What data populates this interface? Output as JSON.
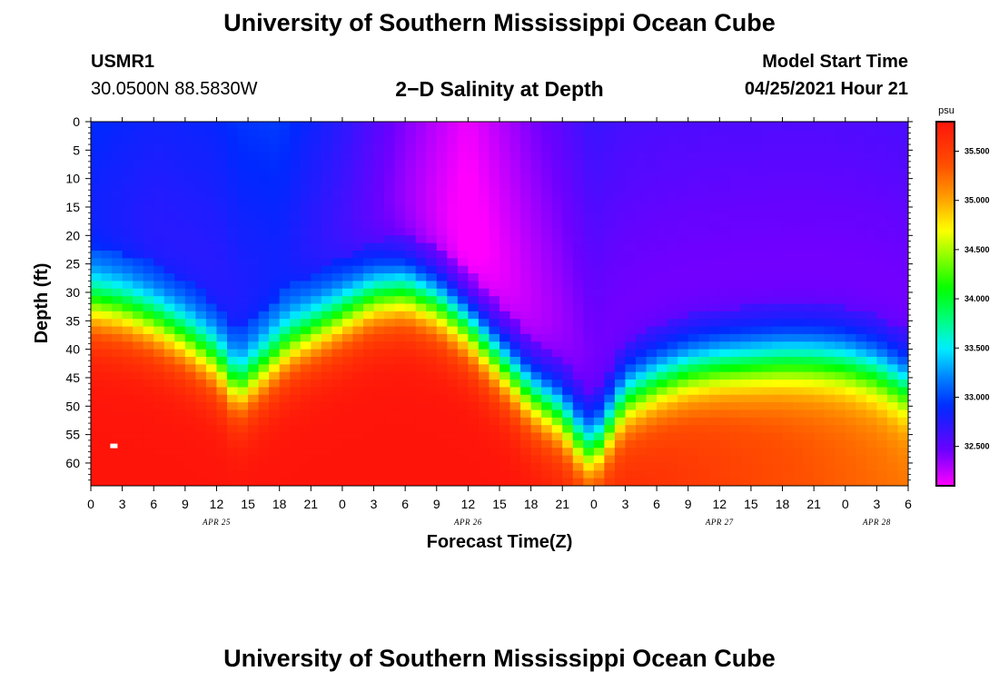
{
  "header": {
    "title_top": "University of Southern Mississippi Ocean Cube",
    "station_id": "USMR1",
    "station_coords": "30.0500N  88.5830W",
    "plot_name": "2−D Salinity at Depth",
    "model_start_label": "Model Start Time",
    "model_start_value": "04/25/2021 Hour 21",
    "title_bottom": "University of Southern Mississippi Ocean Cube"
  },
  "chart_data": {
    "type": "heatmap",
    "title": "2−D Salinity at Depth",
    "xlabel": "Forecast Time(Z)",
    "ylabel": "Depth (ft)",
    "x_range_hours": [
      0,
      78
    ],
    "y_range_ft": [
      0,
      64
    ],
    "y_ticks": [
      0,
      5,
      10,
      15,
      20,
      25,
      30,
      35,
      40,
      45,
      50,
      55,
      60
    ],
    "x_ticks": [
      {
        "hour": 0,
        "label": "0"
      },
      {
        "hour": 3,
        "label": "3"
      },
      {
        "hour": 6,
        "label": "6"
      },
      {
        "hour": 9,
        "label": "9"
      },
      {
        "hour": 12,
        "label": "12"
      },
      {
        "hour": 15,
        "label": "15"
      },
      {
        "hour": 18,
        "label": "18"
      },
      {
        "hour": 21,
        "label": "21"
      },
      {
        "hour": 24,
        "label": "0"
      },
      {
        "hour": 27,
        "label": "3"
      },
      {
        "hour": 30,
        "label": "6"
      },
      {
        "hour": 33,
        "label": "9"
      },
      {
        "hour": 36,
        "label": "12"
      },
      {
        "hour": 39,
        "label": "15"
      },
      {
        "hour": 42,
        "label": "18"
      },
      {
        "hour": 45,
        "label": "21"
      },
      {
        "hour": 48,
        "label": "0"
      },
      {
        "hour": 51,
        "label": "3"
      },
      {
        "hour": 54,
        "label": "6"
      },
      {
        "hour": 57,
        "label": "9"
      },
      {
        "hour": 60,
        "label": "12"
      },
      {
        "hour": 63,
        "label": "15"
      },
      {
        "hour": 66,
        "label": "18"
      },
      {
        "hour": 69,
        "label": "21"
      },
      {
        "hour": 72,
        "label": "0"
      },
      {
        "hour": 75,
        "label": "3"
      },
      {
        "hour": 78,
        "label": "6"
      }
    ],
    "day_labels": [
      {
        "hour": 12,
        "label": "APR 25"
      },
      {
        "hour": 36,
        "label": "APR 26"
      },
      {
        "hour": 60,
        "label": "APR 27"
      },
      {
        "hour": 75,
        "label": "APR 28"
      }
    ],
    "colorbar": {
      "unit": "psu",
      "min": 32.1,
      "max": 35.8,
      "ticks": [
        32.5,
        33.0,
        33.5,
        34.0,
        34.5,
        35.0,
        35.5
      ],
      "tick_labels": [
        "32.500",
        "33.000",
        "33.500",
        "34.000",
        "34.500",
        "35.000",
        "35.500"
      ]
    },
    "halocline_depth_ft": [
      [
        0,
        32
      ],
      [
        3,
        33
      ],
      [
        6,
        35
      ],
      [
        9,
        38
      ],
      [
        12,
        42
      ],
      [
        14,
        47
      ],
      [
        16,
        44
      ],
      [
        19,
        39
      ],
      [
        22,
        36
      ],
      [
        25,
        33
      ],
      [
        27,
        31
      ],
      [
        30,
        30
      ],
      [
        33,
        32
      ],
      [
        36,
        36
      ],
      [
        39,
        42
      ],
      [
        42,
        48
      ],
      [
        45,
        52
      ],
      [
        47,
        57
      ],
      [
        48,
        58
      ],
      [
        49,
        55
      ],
      [
        51,
        49
      ],
      [
        54,
        46
      ],
      [
        57,
        44
      ],
      [
        60,
        43
      ],
      [
        63,
        42.5
      ],
      [
        66,
        42
      ],
      [
        69,
        42
      ],
      [
        72,
        42.5
      ],
      [
        75,
        44
      ],
      [
        78,
        47
      ]
    ],
    "surface_salinity_psu": [
      [
        0,
        32.9
      ],
      [
        6,
        32.8
      ],
      [
        12,
        32.8
      ],
      [
        18,
        32.9
      ],
      [
        24,
        32.7
      ],
      [
        30,
        32.4
      ],
      [
        36,
        32.1
      ],
      [
        42,
        32.3
      ],
      [
        48,
        32.5
      ],
      [
        54,
        32.5
      ],
      [
        60,
        32.5
      ],
      [
        66,
        32.5
      ],
      [
        72,
        32.5
      ],
      [
        78,
        32.5
      ]
    ],
    "surface_min_psu": 32.1,
    "bottom_max_psu": 35.8,
    "bottom_salinity_edge_psu": 35.2,
    "marker": {
      "hour": 2.2,
      "depth_ft": 57
    }
  }
}
